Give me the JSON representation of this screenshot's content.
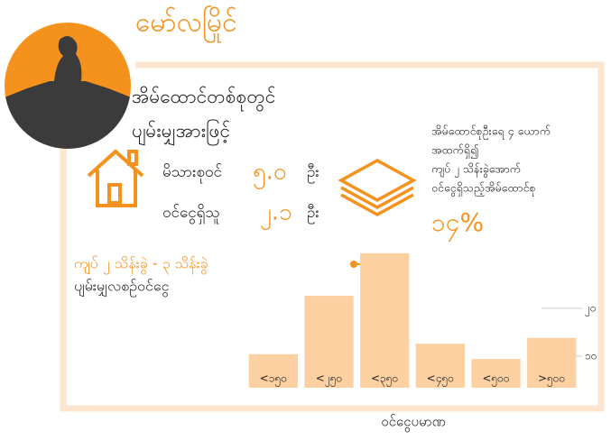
{
  "header": {
    "title": "မော်လမြိုင်"
  },
  "intro": [
    "အိမ်ထောင်တစ်စုတွင်",
    "ပျမ်းမျှအားဖြင့်"
  ],
  "stats": [
    {
      "label": "မိသားစုဝင်",
      "number": "၅.၀",
      "unit": "ဦး"
    },
    {
      "label": "ဝင်ငွေရှိသူ",
      "number": "၂.၁",
      "unit": "ဦး"
    }
  ],
  "side_note": {
    "lines": [
      "အိမ်ထောင်စုဦးရေ ၄ ယောက်",
      "အထက်ရှိ၍",
      "ကျပ် ၂ သိန်းခွဲအောက်",
      "ဝင်ငွေရှိသည့်အိမ်ထောင်စု"
    ],
    "percent": "၁၄%"
  },
  "annotation": [
    "ကျပ် ၂ သိန်းခွဲ - ၃ သိန်းခွဲ",
    "ပျမ်းမျှလစဉ်ဝင်ငွေ"
  ],
  "chart_data": {
    "type": "bar",
    "categories": [
      "<၁၅၀",
      "<၂၅၀",
      "<၃၅၀",
      "<၄၅၀",
      "<၅၀၀",
      ">၅၀၀"
    ],
    "values": [
      10.4,
      22.6,
      31.5,
      12.6,
      9.4,
      13.8
    ],
    "color": "#fdd0a2",
    "xlabel": "ဝင်ငွေပမာဏ",
    "ylim": [
      3.4,
      32.6
    ],
    "yticks": [
      {
        "value": 20,
        "label": "၂၀"
      },
      {
        "value": 10,
        "label": "၁၀"
      }
    ],
    "grid": true
  }
}
